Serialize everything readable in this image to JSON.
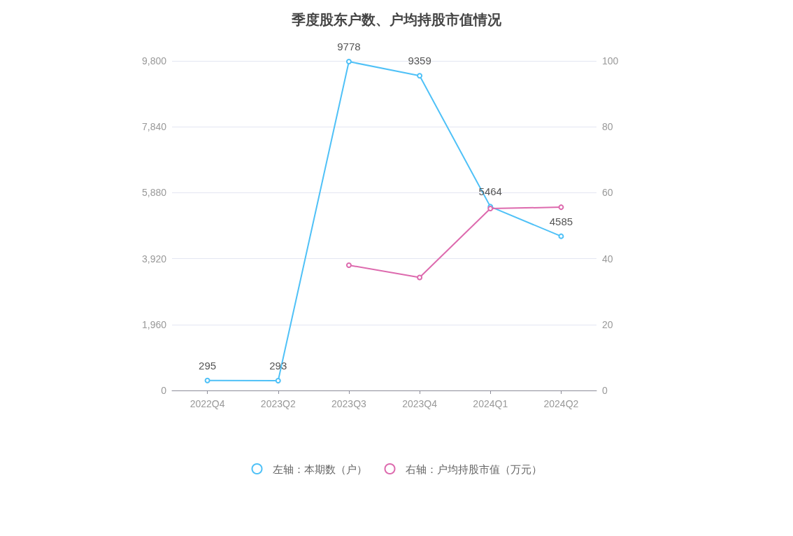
{
  "chart_data": {
    "type": "line",
    "title": "季度股东户数、户均持股市值情况",
    "categories": [
      "2022Q4",
      "2023Q2",
      "2023Q3",
      "2023Q4",
      "2024Q1",
      "2024Q2"
    ],
    "series": [
      {
        "name": "左轴：本期数（户）",
        "color": "#4fc1f7",
        "values": [
          295,
          293,
          9778,
          9359,
          5464,
          4585
        ],
        "value_labels": [
          "295",
          "293",
          "9778",
          "9359",
          "5464",
          "4585"
        ]
      },
      {
        "name": "右轴：户均持股市值（万元）",
        "color": "#dd6aae",
        "axis": "y2",
        "values": [
          null,
          null,
          38.0,
          34.3,
          55.2,
          55.6
        ]
      }
    ],
    "ylim": [
      0,
      9800
    ],
    "yticks": [
      0,
      {
        "value": 1960,
        "label": "1,960"
      },
      {
        "value": 3920,
        "label": "3,920"
      },
      {
        "value": 5880,
        "label": "5,880"
      },
      {
        "value": 7840,
        "label": "7,840"
      },
      {
        "value": 9800,
        "label": "9,800"
      }
    ],
    "y2lim": [
      0,
      100
    ],
    "y2ticks": [
      0,
      20,
      40,
      60,
      80,
      100
    ],
    "grid": "y",
    "legend": "bottom",
    "marker": "circle",
    "line_style": "solid"
  }
}
